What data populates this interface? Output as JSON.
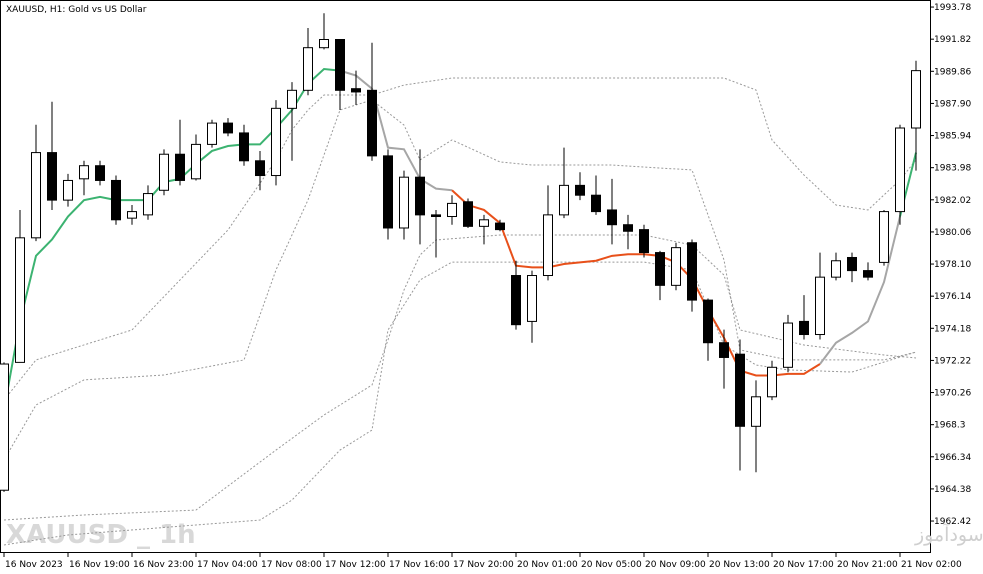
{
  "chart_data": {
    "type": "candlestick",
    "title": "XAUUSD, H1:  Gold vs US Dollar",
    "watermark": "XAUUSD _ 1h",
    "footer_text": "انتشار در سایت سودآموز",
    "categories": [
      "16 Nov 2023",
      null,
      null,
      null,
      "16 Nov 19:00",
      null,
      null,
      null,
      "16 Nov 23:00",
      null,
      null,
      null,
      "17 Nov 04:00",
      null,
      null,
      null,
      "17 Nov 08:00",
      null,
      null,
      null,
      "17 Nov 12:00",
      null,
      null,
      null,
      "17 Nov 16:00",
      null,
      null,
      null,
      "17 Nov 20:00",
      null,
      null,
      null,
      "20 Nov 01:00",
      null,
      null,
      null,
      "20 Nov 05:00",
      null,
      null,
      null,
      "20 Nov 09:00",
      null,
      null,
      null,
      "20 Nov 13:00",
      null,
      null,
      null,
      "20 Nov 17:00",
      null,
      null,
      null,
      "20 Nov 21:00",
      null,
      null,
      null,
      "21 Nov 02:00",
      null
    ],
    "open": [
      1964.3,
      1972.1,
      1979.7,
      1984.9,
      1982.0,
      1983.3,
      1984.1,
      1983.2,
      1980.9,
      1981.1,
      1982.6,
      1984.8,
      1983.3,
      1985.4,
      1986.7,
      1986.1,
      1984.4,
      1983.5,
      1987.6,
      1988.7,
      1991.3,
      1991.8,
      1988.8,
      1988.7,
      1984.7,
      1980.3,
      1983.4,
      1981.1,
      1981.0,
      1981.9,
      1980.4,
      1980.6,
      1977.4,
      1974.6,
      1977.4,
      1981.1,
      1982.9,
      1982.3,
      1981.4,
      1980.5,
      1980.2,
      1978.8,
      1976.8,
      1979.4,
      1975.9,
      1973.3,
      1972.6,
      1968.2,
      1970.0,
      1971.8,
      1974.6,
      1973.8,
      1977.3,
      1978.5,
      1977.7,
      1978.2,
      1981.3,
      1986.4
    ],
    "high": [
      1972.1,
      1981.4,
      1986.6,
      1988.0,
      1983.6,
      1984.4,
      1984.4,
      1983.5,
      1981.7,
      1982.9,
      1985.1,
      1986.9,
      1986.0,
      1986.9,
      1987.0,
      1986.6,
      1985.0,
      1988.1,
      1989.2,
      1992.5,
      1993.4,
      1991.8,
      1989.9,
      1991.6,
      1985.1,
      1983.8,
      1985.1,
      1981.4,
      1982.3,
      1982.1,
      1981.1,
      1980.8,
      1978.3,
      1977.7,
      1982.9,
      1985.2,
      1983.7,
      1983.5,
      1983.3,
      1981.1,
      1980.5,
      1978.9,
      1979.4,
      1979.6,
      1976.0,
      1974.1,
      1973.5,
      1971.0,
      1972.2,
      1975.0,
      1976.2,
      1978.8,
      1978.8,
      1978.8,
      1978.2,
      1981.4,
      1986.6,
      1990.5
    ],
    "low": [
      1964.2,
      1972.1,
      1979.5,
      1981.4,
      1981.6,
      1982.3,
      1982.9,
      1980.5,
      1980.5,
      1980.8,
      1982.3,
      1982.9,
      1983.2,
      1985.2,
      1985.9,
      1984.1,
      1982.6,
      1982.9,
      1984.4,
      1988.4,
      1991.2,
      1987.5,
      1987.8,
      1984.4,
      1979.6,
      1979.6,
      1979.3,
      1978.5,
      1980.5,
      1980.3,
      1979.3,
      1980.1,
      1974.1,
      1973.3,
      1977.1,
      1980.9,
      1982.0,
      1981.1,
      1979.3,
      1979.0,
      1978.5,
      1975.9,
      1976.5,
      1975.2,
      1972.2,
      1970.5,
      1965.5,
      1965.4,
      1969.8,
      1971.5,
      1973.5,
      1973.5,
      1977.1,
      1977.0,
      1977.1,
      1978.0,
      1980.5,
      1983.8
    ],
    "close": [
      1972.0,
      1979.7,
      1984.9,
      1982.0,
      1983.2,
      1984.1,
      1983.2,
      1980.8,
      1981.3,
      1982.4,
      1984.8,
      1983.2,
      1985.4,
      1986.7,
      1986.1,
      1984.4,
      1983.5,
      1987.6,
      1988.7,
      1991.3,
      1991.8,
      1988.7,
      1988.6,
      1984.7,
      1980.3,
      1983.4,
      1981.1,
      1981.0,
      1981.8,
      1980.4,
      1980.8,
      1980.2,
      1974.4,
      1977.4,
      1981.1,
      1982.9,
      1982.3,
      1981.3,
      1980.5,
      1980.1,
      1978.8,
      1976.8,
      1979.1,
      1975.9,
      1973.3,
      1972.4,
      1968.2,
      1970.0,
      1971.8,
      1974.5,
      1973.8,
      1977.3,
      1978.3,
      1977.7,
      1977.3,
      1981.3,
      1986.4,
      1989.9
    ],
    "up_color": "#ffffff",
    "down_color": "#000000",
    "ylim": [
      1960.47,
      1994.21
    ],
    "yticks": [
      1962.42,
      1964.38,
      1966.34,
      1968.3,
      1970.26,
      1972.22,
      1974.18,
      1976.14,
      {
        "value": 1978.1,
        "label": "1978.10"
      },
      1980.06,
      1982.02,
      1983.98,
      1985.94,
      {
        "value": 1987.9,
        "label": "1987.90"
      },
      1989.86,
      1991.82,
      1993.78
    ],
    "series": [
      {
        "color": "#999999",
        "style": "dotted",
        "x": [
          0,
          2,
          8,
          14,
          17,
          18,
          19,
          20,
          23,
          25,
          28,
          31,
          45,
          47,
          48,
          50,
          52,
          54,
          56,
          57
        ],
        "values": [
          1969.8,
          1972.25,
          1974.08,
          1980.18,
          1984.45,
          1986.28,
          1987.5,
          1988.41,
          1988.41,
          1989.02,
          1989.45,
          1989.45,
          1989.45,
          1988.72,
          1985.67,
          1983.53,
          1981.7,
          1981.4,
          1983.23,
          1984.45
        ]
      },
      {
        "color": "#999999",
        "style": "dotted",
        "x": [
          0,
          2,
          5,
          10,
          15,
          17,
          19,
          21,
          23,
          25,
          26,
          28,
          31,
          33,
          38,
          43,
          45,
          46,
          49,
          55,
          57
        ],
        "values": [
          1966.14,
          1969.5,
          1971.03,
          1971.33,
          1972.25,
          1977.74,
          1982.01,
          1987.5,
          1988.11,
          1986.58,
          1984.45,
          1985.67,
          1984.33,
          1984.14,
          1984.14,
          1983.84,
          1978.35,
          1972.86,
          1972.25,
          1972.25,
          1972.73
        ]
      },
      {
        "color": "#999999",
        "style": "dotted",
        "x": [
          0,
          5,
          12,
          17,
          20,
          23,
          24,
          25,
          26,
          27,
          31,
          40,
          43,
          45,
          46,
          50,
          55,
          57
        ],
        "values": [
          1962.48,
          1962.79,
          1963.09,
          1966.75,
          1968.89,
          1970.72,
          1973.47,
          1976.52,
          1978.65,
          1979.57,
          1979.87,
          1979.87,
          1979.26,
          1977.43,
          1974.08,
          1973.16,
          1972.55,
          1972.37
        ]
      },
      {
        "color": "#999999",
        "style": "dotted",
        "x": [
          0,
          4,
          12,
          16,
          18,
          21,
          23,
          24,
          26,
          28,
          33,
          40,
          43,
          45,
          47,
          49,
          53,
          57
        ],
        "values": [
          1960.96,
          1961.57,
          1962.18,
          1962.48,
          1963.7,
          1966.75,
          1967.97,
          1974.08,
          1977.13,
          1978.22,
          1978.22,
          1978.22,
          1977.74,
          1973.16,
          1971.94,
          1971.64,
          1971.51,
          1972.73
        ]
      },
      {
        "color": "#3cb371",
        "style": "solid",
        "x": [
          0,
          1,
          2,
          3,
          4,
          5,
          6,
          7,
          8,
          9,
          10,
          11,
          12,
          13,
          14,
          15,
          16,
          17,
          18,
          19,
          20,
          21
        ],
        "values": [
          1969.2,
          1974.6,
          1978.6,
          1979.6,
          1981.0,
          1982.0,
          1982.2,
          1982.0,
          1982.0,
          1982.0,
          1983.1,
          1983.3,
          1984.2,
          1985.0,
          1985.3,
          1985.4,
          1985.4,
          1986.4,
          1987.5,
          1989.1,
          1990.0,
          1989.9
        ]
      },
      {
        "color": "#a6a6a6",
        "style": "solid",
        "x": [
          21,
          22,
          23,
          24,
          25,
          26,
          27,
          28
        ],
        "values": [
          1989.9,
          1989.6,
          1988.8,
          1985.2,
          1985.1,
          1983.3,
          1982.7,
          1982.6
        ]
      },
      {
        "color": "#e8501a",
        "style": "solid",
        "x": [
          28,
          29,
          30,
          31,
          32,
          33,
          34,
          35,
          36,
          37,
          38,
          39,
          40,
          41,
          42,
          43,
          44,
          45,
          46,
          47,
          48,
          49,
          50,
          51
        ],
        "values": [
          1982.6,
          1981.7,
          1981.4,
          1980.6,
          1978.0,
          1977.9,
          1977.9,
          1978.1,
          1978.2,
          1978.3,
          1978.6,
          1978.7,
          1978.7,
          1978.6,
          1978.2,
          1977.2,
          1975.3,
          1973.6,
          1971.6,
          1971.3,
          1971.3,
          1971.4,
          1971.4,
          1972.0
        ]
      },
      {
        "color": "#a6a6a6",
        "style": "solid",
        "x": [
          51,
          52,
          53,
          54,
          55,
          56
        ],
        "values": [
          1972.0,
          1973.3,
          1973.9,
          1974.6,
          1977.0,
          1981.0
        ]
      },
      {
        "color": "#3cb371",
        "style": "solid",
        "x": [
          56,
          57
        ],
        "values": [
          1981.0,
          1984.9
        ]
      }
    ]
  }
}
